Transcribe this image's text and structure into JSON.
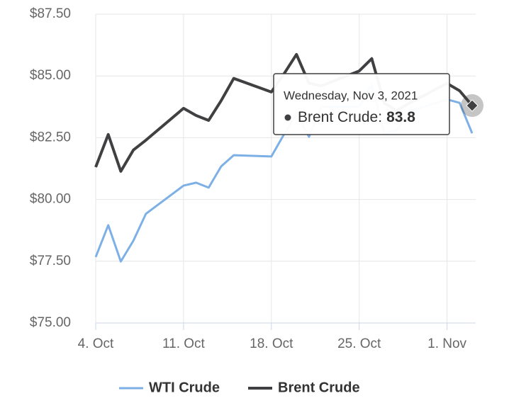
{
  "chart_data": {
    "type": "line",
    "x": [
      "2021-10-04",
      "2021-10-05",
      "2021-10-06",
      "2021-10-07",
      "2021-10-08",
      "2021-10-11",
      "2021-10-12",
      "2021-10-13",
      "2021-10-14",
      "2021-10-15",
      "2021-10-18",
      "2021-10-19",
      "2021-10-20",
      "2021-10-21",
      "2021-10-22",
      "2021-10-25",
      "2021-10-26",
      "2021-10-27",
      "2021-10-28",
      "2021-10-29",
      "2021-11-01",
      "2021-11-02",
      "2021-11-03"
    ],
    "series": [
      {
        "name": "WTI Crude",
        "color": "#7cb0e6",
        "values": [
          77.67,
          78.96,
          77.49,
          78.33,
          79.42,
          80.56,
          80.68,
          80.48,
          81.34,
          81.79,
          81.74,
          82.63,
          83.46,
          82.54,
          83.76,
          83.76,
          84.65,
          82.66,
          82.81,
          83.57,
          84.05,
          83.91,
          82.68
        ]
      },
      {
        "name": "Brent Crude",
        "color": "#404042",
        "values": [
          81.31,
          82.63,
          81.14,
          82.0,
          82.4,
          83.69,
          83.4,
          83.2,
          84.0,
          84.9,
          84.35,
          85.08,
          85.87,
          84.7,
          84.6,
          85.2,
          85.7,
          83.9,
          83.6,
          83.9,
          84.7,
          84.4,
          83.8
        ]
      }
    ],
    "xlim": [
      "2021-10-04",
      "2021-11-03"
    ],
    "xticks": [
      {
        "value": "2021-10-04",
        "label": "4. Oct"
      },
      {
        "value": "2021-10-11",
        "label": "11. Oct"
      },
      {
        "value": "2021-10-18",
        "label": "18. Oct"
      },
      {
        "value": "2021-10-25",
        "label": "25. Oct"
      },
      {
        "value": "2021-11-01",
        "label": "1. Nov"
      }
    ],
    "ylim": [
      75,
      87.5
    ],
    "yticks": [
      {
        "value": 75,
        "label": "$75.00"
      },
      {
        "value": 77.5,
        "label": "$77.50"
      },
      {
        "value": 80,
        "label": "$80.00"
      },
      {
        "value": 82.5,
        "label": "$82.50"
      },
      {
        "value": 85,
        "label": "$85.00"
      },
      {
        "value": 87.5,
        "label": "$87.50"
      }
    ],
    "grid": true,
    "legend": "bottom",
    "tooltip": {
      "header": "Wednesday, Nov 3, 2021",
      "label": "Brent Crude:"
    }
  }
}
